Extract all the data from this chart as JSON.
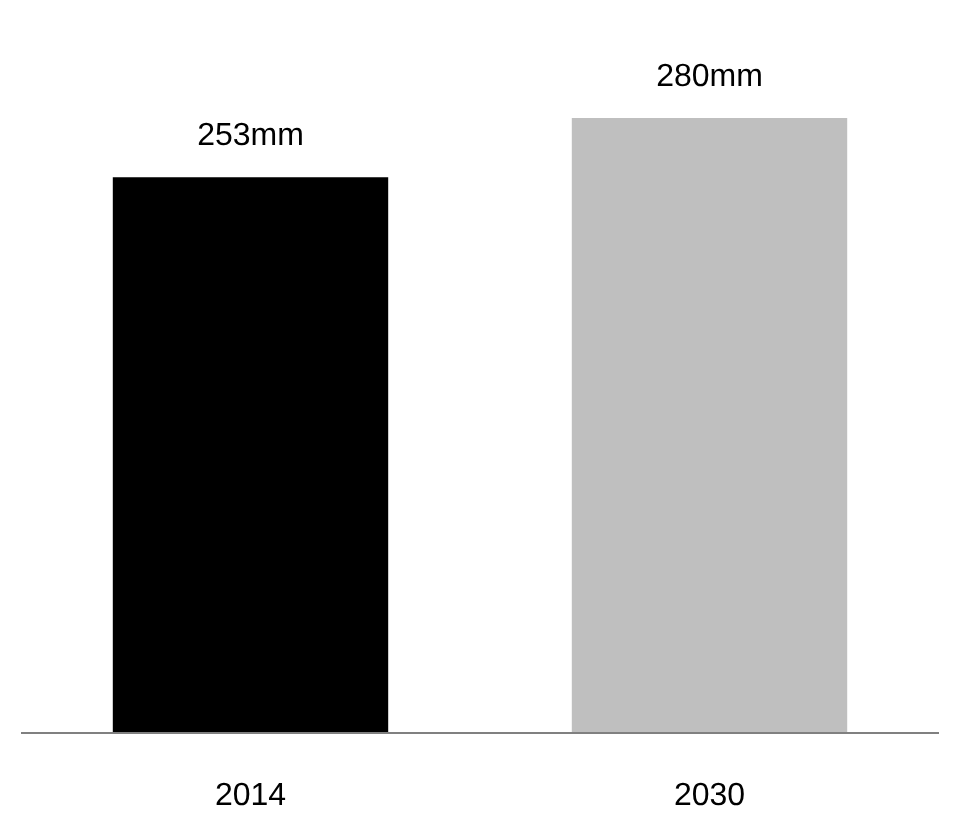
{
  "chart_data": {
    "type": "bar",
    "categories": [
      "2014",
      "2030"
    ],
    "values": [
      253,
      280
    ],
    "colors": [
      "#000000",
      "#bfbfbf"
    ],
    "value_labels": [
      "253mm",
      "280mm"
    ],
    "tick_labels": "x",
    "grid": false
  }
}
